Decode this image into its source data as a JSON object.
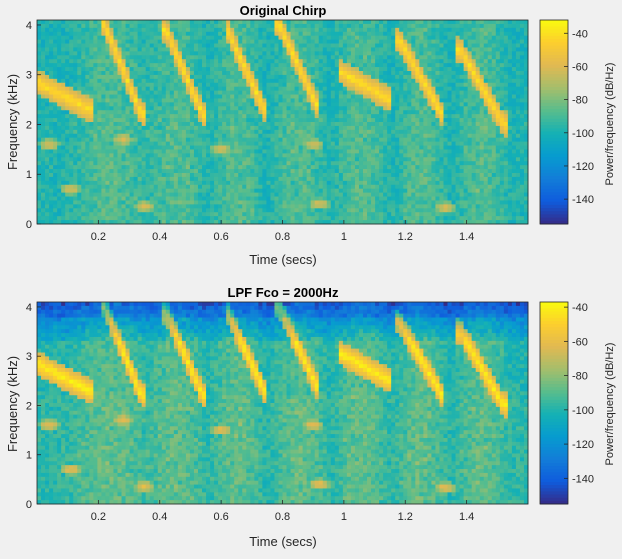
{
  "chart_data": [
    {
      "type": "heatmap",
      "title": "Original Chirp",
      "xlabel": "Time (secs)",
      "ylabel": "Frequency (kHz)",
      "xlim": [
        0,
        1.6
      ],
      "ylim": [
        0,
        4.1
      ],
      "xticks": [
        "0.2",
        "0.4",
        "0.6",
        "0.8",
        "1",
        "1.2",
        "1.4"
      ],
      "xtick_values": [
        0.2,
        0.4,
        0.6,
        0.8,
        1.0,
        1.2,
        1.4
      ],
      "yticks": [
        "0",
        "1",
        "2",
        "3",
        "4"
      ],
      "ytick_values": [
        0,
        1,
        2,
        3,
        4
      ],
      "colorbar": {
        "label": "Power/frequency (dB/Hz)",
        "range": [
          -155,
          -32
        ],
        "ticks": [
          "-40",
          "-60",
          "-80",
          "-100",
          "-120",
          "-140"
        ],
        "tick_values": [
          -40,
          -60,
          -80,
          -100,
          -120,
          -140
        ]
      },
      "lowpass": false
    },
    {
      "type": "heatmap",
      "title": "LPF Fco = 2000Hz",
      "xlabel": "Time (secs)",
      "ylabel": "Frequency (kHz)",
      "xlim": [
        0,
        1.6
      ],
      "ylim": [
        0,
        4.1
      ],
      "xticks": [
        "0.2",
        "0.4",
        "0.6",
        "0.8",
        "1",
        "1.2",
        "1.4"
      ],
      "xtick_values": [
        0.2,
        0.4,
        0.6,
        0.8,
        1.0,
        1.2,
        1.4
      ],
      "yticks": [
        "0",
        "1",
        "2",
        "3",
        "4"
      ],
      "ytick_values": [
        0,
        1,
        2,
        3,
        4
      ],
      "colorbar": {
        "label": "Power/frequency (dB/Hz)",
        "range": [
          -155,
          -37
        ],
        "ticks": [
          "-40",
          "-60",
          "-80",
          "-100",
          "-120",
          "-140"
        ],
        "tick_values": [
          -40,
          -60,
          -80,
          -100,
          -120,
          -140
        ]
      },
      "lowpass": true
    }
  ]
}
